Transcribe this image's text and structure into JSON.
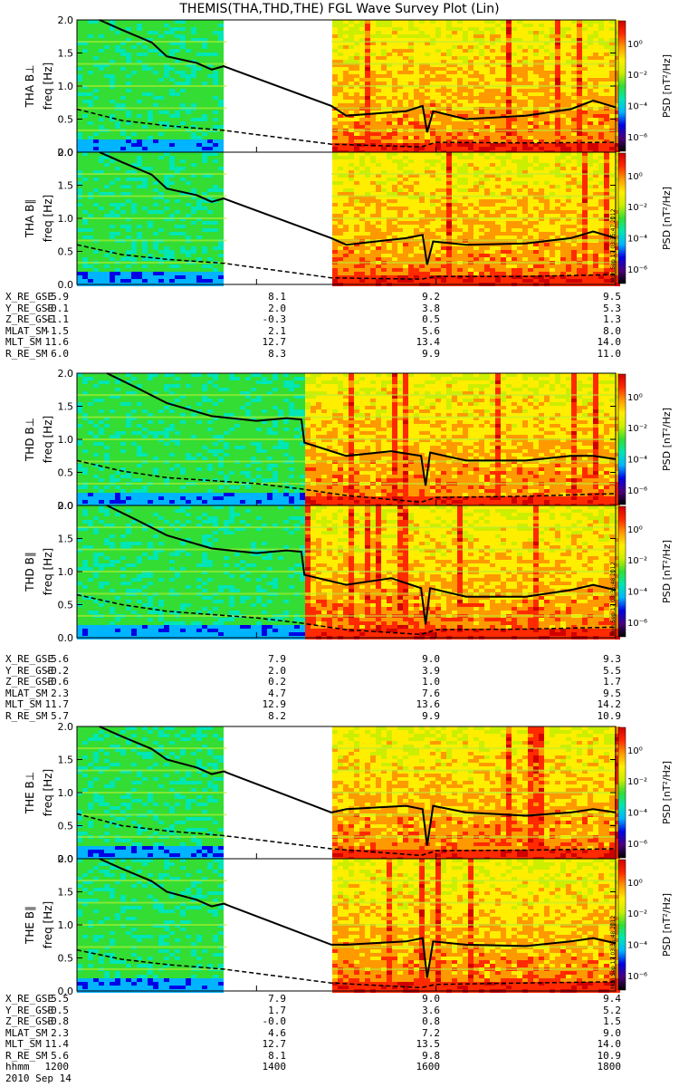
{
  "title": "THEMIS(THA,THD,THE) FGL Wave Survey Plot (Lin)",
  "chart_data": {
    "type": "heatmap",
    "x_axis": {
      "ticks": [
        "1200",
        "1400",
        "1600",
        "1800"
      ],
      "range_hhmm": [
        "1200",
        "1800"
      ],
      "label": "hhmm",
      "date": "2010 Sep 14"
    },
    "colorbar": {
      "label": "PSD [nT²/Hz]",
      "ticks": [
        "10⁰",
        "10⁻²",
        "10⁻⁴",
        "10⁻⁶"
      ],
      "range_log10": [
        -7,
        1.5
      ],
      "colors": [
        "#000000",
        "#4b007a",
        "#0000e6",
        "#00b4ff",
        "#00e6b4",
        "#33dd33",
        "#ccee00",
        "#ffee00",
        "#ff9900",
        "#ff2a00",
        "#d00000"
      ]
    },
    "y_axis": {
      "label": "freq [Hz]",
      "range": [
        0,
        2.0
      ],
      "ticks": [
        "0.0",
        "0.5",
        "1.0",
        "1.5",
        "2.0"
      ]
    },
    "panels": [
      {
        "label": "THA B⊥",
        "probe": "THA",
        "stamp": "Mon Sep 17 03:35:47 2012",
        "gaps": [
          [
            1340,
            1450
          ]
        ],
        "active_start": 1450,
        "step_at": null,
        "line_points": [
          [
            1215,
            2.0
          ],
          [
            1230,
            1.85
          ],
          [
            1250,
            1.66
          ],
          [
            1300,
            1.45
          ],
          [
            1320,
            1.35
          ],
          [
            1330,
            1.25
          ],
          [
            1338,
            1.3
          ],
          [
            1450,
            0.7
          ],
          [
            1500,
            0.55
          ],
          [
            1540,
            0.62
          ],
          [
            1551,
            0.7
          ],
          [
            1554,
            0.3
          ],
          [
            1558,
            0.62
          ],
          [
            1620,
            0.5
          ],
          [
            1700,
            0.55
          ],
          [
            1730,
            0.65
          ],
          [
            1745,
            0.78
          ],
          [
            1800,
            0.68
          ]
        ],
        "dash_points": [
          [
            1200,
            0.65
          ],
          [
            1230,
            0.48
          ],
          [
            1300,
            0.4
          ],
          [
            1338,
            0.33
          ],
          [
            1450,
            0.12
          ],
          [
            1550,
            0.08
          ],
          [
            1600,
            0.15
          ],
          [
            1700,
            0.14
          ],
          [
            1800,
            0.15
          ]
        ]
      },
      {
        "label": "THA B∥",
        "probe": "THA",
        "stamp": "Mon Sep 17 03:35:47 2012",
        "gaps": [
          [
            1340,
            1450
          ]
        ],
        "active_start": 1450,
        "step_at": null,
        "line_points": [
          [
            1215,
            2.0
          ],
          [
            1230,
            1.85
          ],
          [
            1250,
            1.66
          ],
          [
            1300,
            1.45
          ],
          [
            1320,
            1.35
          ],
          [
            1330,
            1.25
          ],
          [
            1338,
            1.3
          ],
          [
            1450,
            0.7
          ],
          [
            1500,
            0.6
          ],
          [
            1540,
            0.7
          ],
          [
            1551,
            0.75
          ],
          [
            1554,
            0.3
          ],
          [
            1558,
            0.65
          ],
          [
            1620,
            0.6
          ],
          [
            1700,
            0.62
          ],
          [
            1730,
            0.7
          ],
          [
            1745,
            0.8
          ],
          [
            1800,
            0.7
          ]
        ],
        "dash_points": [
          [
            1200,
            0.6
          ],
          [
            1230,
            0.45
          ],
          [
            1300,
            0.38
          ],
          [
            1338,
            0.32
          ],
          [
            1450,
            0.1
          ],
          [
            1550,
            0.08
          ],
          [
            1600,
            0.12
          ],
          [
            1700,
            0.12
          ],
          [
            1800,
            0.15
          ]
        ]
      },
      {
        "label": "THD B⊥",
        "probe": "THD",
        "stamp": "Mon Sep 17 03:35:48 2012",
        "gaps": [],
        "active_start": 1430,
        "step_at": 1430,
        "line_points": [
          [
            1220,
            2.0
          ],
          [
            1240,
            1.78
          ],
          [
            1300,
            1.55
          ],
          [
            1330,
            1.35
          ],
          [
            1400,
            1.28
          ],
          [
            1420,
            1.32
          ],
          [
            1430,
            1.3
          ],
          [
            1432,
            0.95
          ],
          [
            1500,
            0.75
          ],
          [
            1530,
            0.82
          ],
          [
            1550,
            0.75
          ],
          [
            1553,
            0.3
          ],
          [
            1556,
            0.8
          ],
          [
            1620,
            0.68
          ],
          [
            1700,
            0.68
          ],
          [
            1730,
            0.75
          ],
          [
            1745,
            0.75
          ],
          [
            1800,
            0.7
          ]
        ],
        "dash_points": [
          [
            1200,
            0.68
          ],
          [
            1230,
            0.52
          ],
          [
            1300,
            0.42
          ],
          [
            1400,
            0.33
          ],
          [
            1430,
            0.25
          ],
          [
            1500,
            0.15
          ],
          [
            1550,
            0.05
          ],
          [
            1600,
            0.12
          ],
          [
            1700,
            0.14
          ],
          [
            1800,
            0.18
          ]
        ]
      },
      {
        "label": "THD B∥",
        "probe": "THD",
        "stamp": "Mon Sep 17 03:35:48 2012",
        "gaps": [],
        "active_start": 1430,
        "step_at": 1430,
        "line_points": [
          [
            1220,
            2.0
          ],
          [
            1240,
            1.78
          ],
          [
            1300,
            1.55
          ],
          [
            1330,
            1.35
          ],
          [
            1400,
            1.28
          ],
          [
            1420,
            1.32
          ],
          [
            1430,
            1.3
          ],
          [
            1432,
            0.95
          ],
          [
            1500,
            0.8
          ],
          [
            1530,
            0.9
          ],
          [
            1550,
            0.75
          ],
          [
            1553,
            0.2
          ],
          [
            1556,
            0.75
          ],
          [
            1620,
            0.62
          ],
          [
            1700,
            0.62
          ],
          [
            1730,
            0.72
          ],
          [
            1745,
            0.8
          ],
          [
            1800,
            0.72
          ]
        ],
        "dash_points": [
          [
            1200,
            0.65
          ],
          [
            1230,
            0.5
          ],
          [
            1300,
            0.4
          ],
          [
            1400,
            0.3
          ],
          [
            1430,
            0.22
          ],
          [
            1500,
            0.12
          ],
          [
            1550,
            0.05
          ],
          [
            1600,
            0.12
          ],
          [
            1700,
            0.13
          ],
          [
            1800,
            0.16
          ]
        ]
      },
      {
        "label": "THE B⊥",
        "probe": "THE",
        "stamp": "Mon Sep 17 03:35:48 2012",
        "gaps": [
          [
            1340,
            1450
          ]
        ],
        "active_start": 1450,
        "step_at": null,
        "line_points": [
          [
            1215,
            2.0
          ],
          [
            1230,
            1.85
          ],
          [
            1250,
            1.66
          ],
          [
            1300,
            1.5
          ],
          [
            1320,
            1.38
          ],
          [
            1330,
            1.28
          ],
          [
            1338,
            1.32
          ],
          [
            1450,
            0.7
          ],
          [
            1500,
            0.75
          ],
          [
            1540,
            0.8
          ],
          [
            1551,
            0.75
          ],
          [
            1554,
            0.2
          ],
          [
            1558,
            0.8
          ],
          [
            1620,
            0.7
          ],
          [
            1700,
            0.65
          ],
          [
            1730,
            0.7
          ],
          [
            1745,
            0.75
          ],
          [
            1800,
            0.7
          ]
        ],
        "dash_points": [
          [
            1200,
            0.68
          ],
          [
            1230,
            0.5
          ],
          [
            1300,
            0.42
          ],
          [
            1338,
            0.35
          ],
          [
            1450,
            0.15
          ],
          [
            1550,
            0.05
          ],
          [
            1600,
            0.12
          ],
          [
            1700,
            0.13
          ],
          [
            1800,
            0.15
          ]
        ]
      },
      {
        "label": "THE B∥",
        "probe": "THE",
        "stamp": "Mon Sep 17 03:35:48 2012",
        "gaps": [
          [
            1340,
            1450
          ]
        ],
        "active_start": 1450,
        "step_at": null,
        "line_points": [
          [
            1215,
            2.0
          ],
          [
            1230,
            1.85
          ],
          [
            1250,
            1.66
          ],
          [
            1300,
            1.5
          ],
          [
            1320,
            1.38
          ],
          [
            1330,
            1.28
          ],
          [
            1338,
            1.32
          ],
          [
            1450,
            0.7
          ],
          [
            1500,
            0.7
          ],
          [
            1540,
            0.75
          ],
          [
            1551,
            0.8
          ],
          [
            1554,
            0.2
          ],
          [
            1558,
            0.75
          ],
          [
            1620,
            0.7
          ],
          [
            1700,
            0.68
          ],
          [
            1730,
            0.75
          ],
          [
            1745,
            0.8
          ],
          [
            1800,
            0.72
          ]
        ],
        "dash_points": [
          [
            1200,
            0.62
          ],
          [
            1230,
            0.48
          ],
          [
            1300,
            0.4
          ],
          [
            1338,
            0.33
          ],
          [
            1450,
            0.12
          ],
          [
            1550,
            0.05
          ],
          [
            1600,
            0.1
          ],
          [
            1700,
            0.12
          ],
          [
            1800,
            0.14
          ]
        ]
      }
    ]
  },
  "ephemeris": [
    {
      "probe": "THA",
      "rows": [
        {
          "label": "X_RE_GSE",
          "values": [
            "5.9",
            "8.1",
            "9.2",
            "9.5"
          ]
        },
        {
          "label": "Y_RE_GSE",
          "values": [
            "-0.1",
            "2.0",
            "3.8",
            "5.3"
          ]
        },
        {
          "label": "Z_RE_GSE",
          "values": [
            "-1.1",
            "-0.3",
            "0.5",
            "1.3"
          ]
        },
        {
          "label": "MLAT_SM",
          "values": [
            "-1.5",
            "2.1",
            "5.6",
            "8.0"
          ]
        },
        {
          "label": "MLT_SM",
          "values": [
            "11.6",
            "12.7",
            "13.4",
            "14.0"
          ]
        },
        {
          "label": "R_RE_SM",
          "values": [
            "6.0",
            "8.3",
            "9.9",
            "11.0"
          ]
        }
      ]
    },
    {
      "probe": "THD",
      "rows": [
        {
          "label": "X_RE_GSE",
          "values": [
            "5.6",
            "7.9",
            "9.0",
            "9.3"
          ]
        },
        {
          "label": "Y_RE_GSE",
          "values": [
            "-0.2",
            "2.0",
            "3.9",
            "5.5"
          ]
        },
        {
          "label": "Z_RE_GSE",
          "values": [
            "-0.6",
            "0.2",
            "1.0",
            "1.7"
          ]
        },
        {
          "label": "MLAT_SM",
          "values": [
            "2.3",
            "4.7",
            "7.6",
            "9.5"
          ]
        },
        {
          "label": "MLT_SM",
          "values": [
            "11.7",
            "12.9",
            "13.6",
            "14.2"
          ]
        },
        {
          "label": "R_RE_SM",
          "values": [
            "5.7",
            "8.2",
            "9.9",
            "10.9"
          ]
        }
      ]
    },
    {
      "probe": "THE",
      "rows": [
        {
          "label": "X_RE_GSE",
          "values": [
            "5.5",
            "7.9",
            "9.0",
            "9.4"
          ]
        },
        {
          "label": "Y_RE_GSE",
          "values": [
            "-0.5",
            "1.7",
            "3.6",
            "5.2"
          ]
        },
        {
          "label": "Z_RE_GSE",
          "values": [
            "-0.8",
            "-0.0",
            "0.8",
            "1.5"
          ]
        },
        {
          "label": "MLAT_SM",
          "values": [
            "2.3",
            "4.6",
            "7.2",
            "9.0"
          ]
        },
        {
          "label": "MLT_SM",
          "values": [
            "11.4",
            "12.7",
            "13.5",
            "14.0"
          ]
        },
        {
          "label": "R_RE_SM",
          "values": [
            "5.6",
            "8.1",
            "9.8",
            "10.9"
          ]
        }
      ]
    }
  ]
}
